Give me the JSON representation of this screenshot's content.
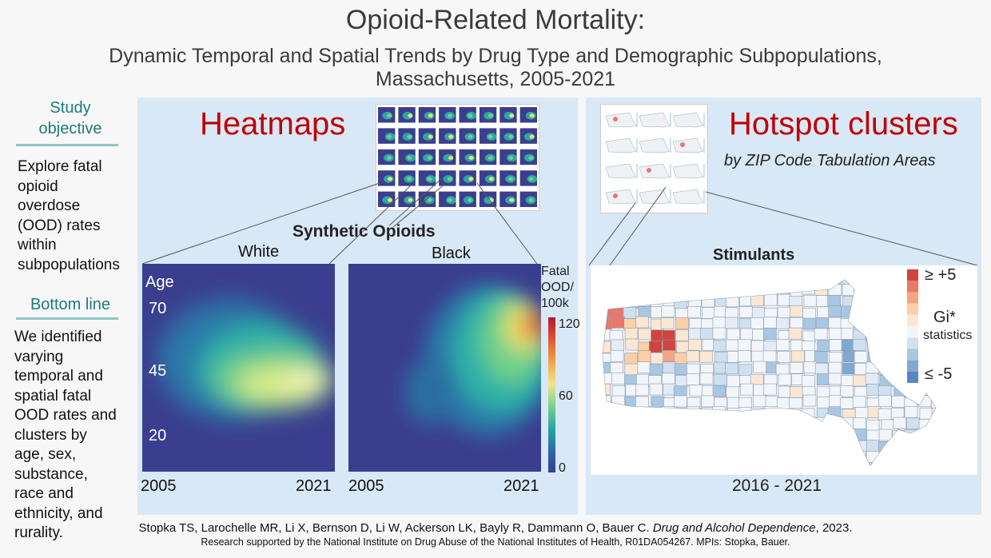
{
  "header": {
    "title": "Opioid-Related Mortality:",
    "subtitle_line1": "Dynamic Temporal and Spatial Trends by Drug Type and Demographic Subpopulations,",
    "subtitle_line2": "Massachusetts, 2005-2021"
  },
  "sidebar": {
    "objective_heading_1": "Study",
    "objective_heading_2": "objective",
    "objective_lines": [
      "Explore fatal",
      "opioid",
      "overdose",
      "(OOD) rates",
      "within",
      "subpopulations"
    ],
    "bottom_heading": "Bottom line",
    "bottom_lines": [
      "We identified",
      "varying",
      "temporal and",
      "spatial fatal",
      "OOD rates and",
      "clusters by",
      "age, sex,",
      "substance,",
      "race and",
      "ethnicity, and",
      "rurality."
    ]
  },
  "heatmaps": {
    "title": "Heatmaps",
    "drug": "Synthetic Opioids",
    "left_label": "White",
    "right_label": "Black",
    "y_axis_label": "Age",
    "y_ticks": [
      "70",
      "45",
      "20"
    ],
    "x_start": "2005",
    "x_end": "2021",
    "legend_title_1": "Fatal",
    "legend_title_2": "OOD/",
    "legend_title_3": "100k",
    "legend_ticks": [
      "120",
      "60",
      "0"
    ]
  },
  "hotspots": {
    "title": "Hotspot clusters",
    "subtitle": "by ZIP Code Tabulation Areas",
    "map_title": "Stimulants",
    "legend_high": "≥ +5",
    "legend_mid_1": "Gi*",
    "legend_mid_2": "statistics",
    "legend_low": "≤ -5",
    "period": "2016 - 2021",
    "legend_colors": [
      "#d0433e",
      "#e9776a",
      "#f4a582",
      "#fdcfa6",
      "#fbe7d3",
      "#f2f6fb",
      "#cfe0ef",
      "#a9c7e2",
      "#7fa8d2",
      "#5a86c0"
    ]
  },
  "footer": {
    "citation": "Stopka TS, Larochelle MR, Li X, Bernson D, Li W, Ackerson LK, Bayly R, Dammann O, Bauer C. ",
    "journal": "Drug and Alcohol Dependence",
    "year": ", 2023.",
    "funding": "Research supported by the National Institute on Drug Abuse of the National Institutes of Health, R01DA054267. MPIs: Stopka, Bauer."
  }
}
